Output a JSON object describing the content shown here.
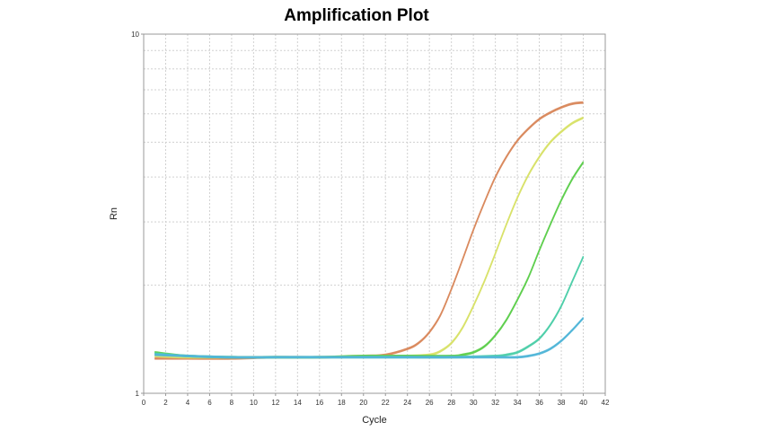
{
  "chart_data": {
    "type": "line",
    "title": "Amplification Plot",
    "xlabel": "Cycle",
    "ylabel": "Rn",
    "xlim": [
      0,
      42
    ],
    "ylim": [
      1,
      10
    ],
    "y_scale": "log",
    "x_ticks": [
      0,
      2,
      4,
      6,
      8,
      10,
      12,
      14,
      16,
      18,
      20,
      22,
      24,
      26,
      28,
      30,
      32,
      34,
      36,
      38,
      40,
      42
    ],
    "y_tick_labels": [
      "1",
      "10"
    ],
    "grid": true,
    "legend": "none",
    "series": [
      {
        "color": "#d98a5e",
        "values": [
          [
            1,
            1.25
          ],
          [
            4,
            1.25
          ],
          [
            8,
            1.25
          ],
          [
            12,
            1.26
          ],
          [
            16,
            1.26
          ],
          [
            20,
            1.27
          ],
          [
            22,
            1.28
          ],
          [
            24,
            1.33
          ],
          [
            25,
            1.38
          ],
          [
            26,
            1.48
          ],
          [
            27,
            1.65
          ],
          [
            28,
            1.95
          ],
          [
            29,
            2.35
          ],
          [
            30,
            2.85
          ],
          [
            31,
            3.4
          ],
          [
            32,
            4.0
          ],
          [
            33,
            4.55
          ],
          [
            34,
            5.05
          ],
          [
            35,
            5.45
          ],
          [
            36,
            5.8
          ],
          [
            37,
            6.05
          ],
          [
            38,
            6.25
          ],
          [
            39,
            6.4
          ],
          [
            40,
            6.45
          ]
        ]
      },
      {
        "color": "#d8e26a",
        "values": [
          [
            1,
            1.27
          ],
          [
            4,
            1.26
          ],
          [
            8,
            1.26
          ],
          [
            12,
            1.26
          ],
          [
            16,
            1.26
          ],
          [
            20,
            1.27
          ],
          [
            24,
            1.27
          ],
          [
            26,
            1.28
          ],
          [
            27,
            1.31
          ],
          [
            28,
            1.38
          ],
          [
            29,
            1.52
          ],
          [
            30,
            1.75
          ],
          [
            31,
            2.05
          ],
          [
            32,
            2.45
          ],
          [
            33,
            2.95
          ],
          [
            34,
            3.5
          ],
          [
            35,
            4.05
          ],
          [
            36,
            4.55
          ],
          [
            37,
            5.0
          ],
          [
            38,
            5.35
          ],
          [
            39,
            5.65
          ],
          [
            40,
            5.85
          ]
        ]
      },
      {
        "color": "#5fcf4f",
        "values": [
          [
            1,
            1.3
          ],
          [
            4,
            1.27
          ],
          [
            8,
            1.26
          ],
          [
            12,
            1.26
          ],
          [
            16,
            1.26
          ],
          [
            20,
            1.27
          ],
          [
            24,
            1.27
          ],
          [
            28,
            1.27
          ],
          [
            29,
            1.28
          ],
          [
            30,
            1.3
          ],
          [
            31,
            1.35
          ],
          [
            32,
            1.45
          ],
          [
            33,
            1.6
          ],
          [
            34,
            1.82
          ],
          [
            35,
            2.1
          ],
          [
            36,
            2.5
          ],
          [
            37,
            2.95
          ],
          [
            38,
            3.45
          ],
          [
            39,
            3.95
          ],
          [
            40,
            4.4
          ]
        ]
      },
      {
        "color": "#4fcfa9",
        "values": [
          [
            1,
            1.29
          ],
          [
            4,
            1.27
          ],
          [
            8,
            1.26
          ],
          [
            12,
            1.26
          ],
          [
            16,
            1.26
          ],
          [
            20,
            1.26
          ],
          [
            24,
            1.26
          ],
          [
            28,
            1.26
          ],
          [
            32,
            1.27
          ],
          [
            33,
            1.28
          ],
          [
            34,
            1.3
          ],
          [
            35,
            1.35
          ],
          [
            36,
            1.42
          ],
          [
            37,
            1.55
          ],
          [
            38,
            1.75
          ],
          [
            39,
            2.05
          ],
          [
            40,
            2.4
          ]
        ]
      },
      {
        "color": "#52b6d8",
        "values": [
          [
            1,
            1.28
          ],
          [
            4,
            1.27
          ],
          [
            8,
            1.26
          ],
          [
            12,
            1.26
          ],
          [
            16,
            1.26
          ],
          [
            20,
            1.26
          ],
          [
            24,
            1.26
          ],
          [
            28,
            1.26
          ],
          [
            32,
            1.26
          ],
          [
            34,
            1.26
          ],
          [
            35,
            1.27
          ],
          [
            36,
            1.29
          ],
          [
            37,
            1.33
          ],
          [
            38,
            1.4
          ],
          [
            39,
            1.5
          ],
          [
            40,
            1.62
          ]
        ]
      }
    ]
  }
}
